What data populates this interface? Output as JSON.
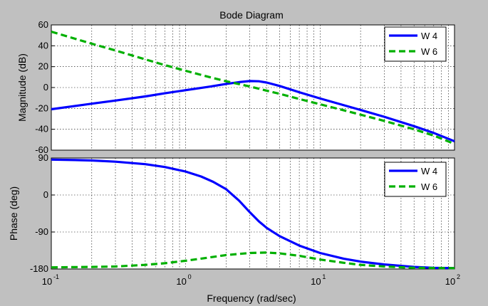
{
  "figure": {
    "title": "Bode Diagram",
    "xlabel": "Frequency  (rad/sec)"
  },
  "chart_data": [
    {
      "type": "line",
      "panel": "magnitude",
      "title": "Bode Diagram",
      "xlabel": "Frequency  (rad/sec)",
      "ylabel": "Magnitude (dB)",
      "x_scale": "log",
      "xlim": [
        0.1,
        100
      ],
      "ylim": [
        -60,
        60
      ],
      "yticks": [
        -60,
        -40,
        -20,
        0,
        20,
        40,
        60
      ],
      "grid": true,
      "legend_position": "top-right",
      "series": [
        {
          "name": "W 4",
          "color": "#0000ff",
          "style": "solid",
          "x": [
            0.1,
            0.2,
            0.3,
            0.5,
            0.7,
            1,
            1.5,
            2,
            2.5,
            3,
            3.5,
            4,
            5,
            7,
            10,
            20,
            30,
            50,
            70,
            100
          ],
          "y": [
            -20.8,
            -15.5,
            -12.5,
            -8.5,
            -5.5,
            -2.5,
            0.8,
            3.5,
            5.2,
            6.2,
            6,
            4.8,
            1.5,
            -4.5,
            -10.5,
            -21.5,
            -28,
            -37,
            -43.5,
            -51.5
          ]
        },
        {
          "name": "W 6",
          "color": "#00b000",
          "style": "dashed",
          "x": [
            0.1,
            0.2,
            0.3,
            0.5,
            0.7,
            1,
            1.5,
            2,
            3,
            4,
            5,
            7,
            10,
            20,
            30,
            50,
            70,
            100
          ],
          "y": [
            53.5,
            42,
            35.5,
            27,
            21.5,
            16,
            10,
            6,
            1,
            -3,
            -6,
            -11,
            -16,
            -26,
            -32,
            -40,
            -46,
            -54
          ]
        }
      ]
    },
    {
      "type": "line",
      "panel": "phase",
      "ylabel": "Phase (deg)",
      "x_scale": "log",
      "xlim": [
        0.1,
        100
      ],
      "ylim": [
        -180,
        90
      ],
      "yticks": [
        -180,
        -90,
        0,
        90
      ],
      "xtick_labels": [
        "10",
        "10",
        "10",
        "10"
      ],
      "xtick_exponents": [
        "-1",
        "0",
        "1",
        "2"
      ],
      "grid": true,
      "legend_position": "top-right",
      "series": [
        {
          "name": "W 4",
          "color": "#0000ff",
          "style": "solid",
          "x": [
            0.1,
            0.15,
            0.2,
            0.3,
            0.5,
            0.7,
            1,
            1.3,
            1.6,
            2,
            2.5,
            3,
            3.5,
            4,
            5,
            7,
            10,
            15,
            20,
            30,
            50,
            70,
            100
          ],
          "y": [
            86,
            85,
            84,
            81,
            75,
            68,
            57,
            45,
            32,
            14,
            -14,
            -42,
            -64,
            -80,
            -100,
            -123,
            -141,
            -155,
            -162,
            -169,
            -175,
            -177,
            -178
          ]
        },
        {
          "name": "W 6",
          "color": "#00b000",
          "style": "dashed",
          "x": [
            0.1,
            0.2,
            0.3,
            0.5,
            0.7,
            1,
            1.5,
            2,
            3,
            4,
            5,
            7,
            10,
            15,
            20,
            30,
            50,
            100
          ],
          "y": [
            -176,
            -175,
            -174,
            -170,
            -166,
            -160,
            -152,
            -146,
            -141,
            -140,
            -142,
            -148,
            -157,
            -165,
            -170,
            -174,
            -177,
            -178
          ]
        }
      ]
    }
  ]
}
